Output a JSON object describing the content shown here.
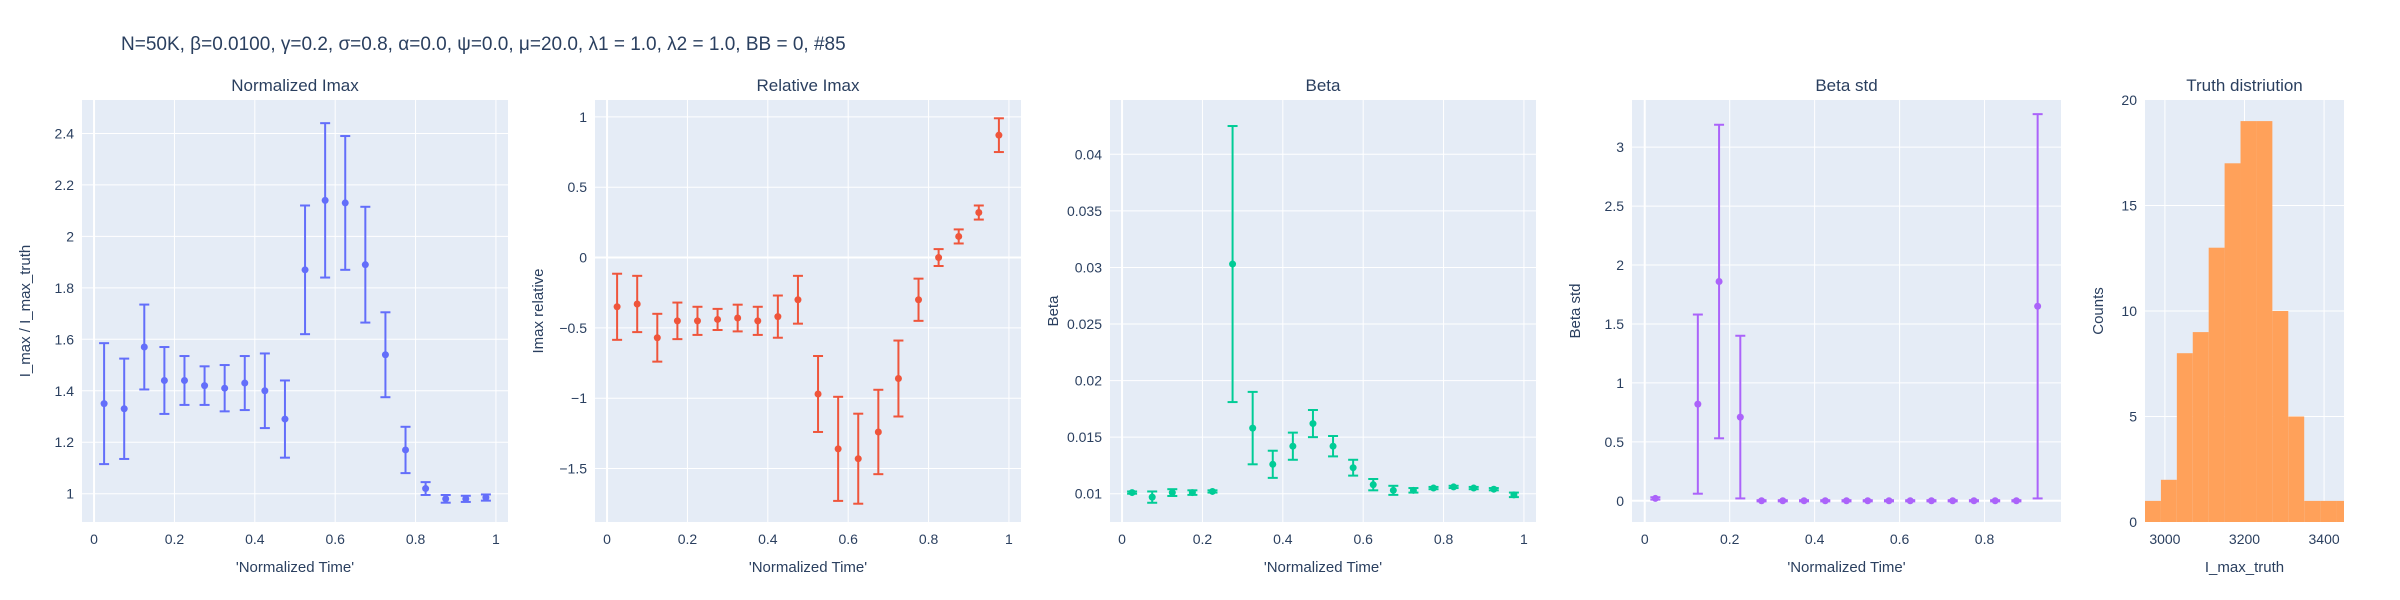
{
  "suptitle": "N=50K, β=0.0100, γ=0.2, σ=0.8,  α=0.0, ψ=0.0, μ=20.0, λ1 = 1.0, λ2 = 1.0, BB = 0, #85",
  "colors": {
    "plot_bg": "#E5ECF6",
    "grid": "#ffffff",
    "text": "#2a3f5f",
    "series_1": "#636EFA",
    "series_2": "#EF553B",
    "series_3": "#00CC96",
    "series_4": "#AB63FA",
    "series_5": "#FFA15A"
  },
  "chart_data": [
    {
      "type": "scatter",
      "title": "Normalized Imax",
      "xlabel": "'Normalized Time'",
      "ylabel": "I_max / I_max_truth",
      "xlim": [
        -0.03,
        1.03
      ],
      "ylim": [
        0.89,
        2.53
      ],
      "xticks": [
        0,
        0.2,
        0.4,
        0.6,
        0.8,
        1
      ],
      "xticklabels": [
        "0",
        "0.2",
        "0.4",
        "0.6",
        "0.8",
        "1"
      ],
      "yticks": [
        1,
        1.2,
        1.4,
        1.6,
        1.8,
        2,
        2.2,
        2.4
      ],
      "yticklabels": [
        "1",
        "1.2",
        "1.4",
        "1.6",
        "1.8",
        "2",
        "2.2",
        "2.4"
      ],
      "grid": true,
      "color": "#636EFA",
      "x": [
        0.025,
        0.075,
        0.125,
        0.175,
        0.225,
        0.275,
        0.325,
        0.375,
        0.425,
        0.475,
        0.525,
        0.575,
        0.625,
        0.675,
        0.725,
        0.775,
        0.825,
        0.875,
        0.925,
        0.975
      ],
      "y": [
        1.35,
        1.33,
        1.57,
        1.44,
        1.44,
        1.42,
        1.41,
        1.43,
        1.4,
        1.29,
        1.87,
        2.14,
        2.13,
        1.89,
        1.54,
        1.17,
        1.02,
        0.98,
        0.98,
        0.985
      ],
      "err": [
        0.235,
        0.195,
        0.165,
        0.13,
        0.095,
        0.075,
        0.09,
        0.105,
        0.145,
        0.15,
        0.25,
        0.3,
        0.26,
        0.225,
        0.165,
        0.09,
        0.025,
        0.015,
        0.012,
        0.012
      ]
    },
    {
      "type": "scatter",
      "title": "Relative Imax",
      "xlabel": "'Normalized Time'",
      "ylabel": "Imax relative",
      "xlim": [
        -0.03,
        1.03
      ],
      "ylim": [
        -1.88,
        1.12
      ],
      "xticks": [
        0,
        0.2,
        0.4,
        0.6,
        0.8,
        1
      ],
      "xticklabels": [
        "0",
        "0.2",
        "0.4",
        "0.6",
        "0.8",
        "1"
      ],
      "yticks": [
        -1.5,
        -1,
        -0.5,
        0,
        0.5,
        1
      ],
      "yticklabels": [
        "−1.5",
        "−1",
        "−0.5",
        "0",
        "0.5",
        "1"
      ],
      "grid": true,
      "color": "#EF553B",
      "x": [
        0.025,
        0.075,
        0.125,
        0.175,
        0.225,
        0.275,
        0.325,
        0.375,
        0.425,
        0.475,
        0.525,
        0.575,
        0.625,
        0.675,
        0.725,
        0.775,
        0.825,
        0.875,
        0.925,
        0.975
      ],
      "y": [
        -0.35,
        -0.33,
        -0.57,
        -0.45,
        -0.45,
        -0.44,
        -0.43,
        -0.45,
        -0.42,
        -0.3,
        -0.97,
        -1.36,
        -1.43,
        -1.24,
        -0.86,
        -0.3,
        0.0,
        0.15,
        0.32,
        0.87
      ],
      "err": [
        0.235,
        0.2,
        0.17,
        0.13,
        0.1,
        0.075,
        0.095,
        0.1,
        0.15,
        0.17,
        0.27,
        0.37,
        0.32,
        0.3,
        0.27,
        0.15,
        0.06,
        0.05,
        0.05,
        0.12
      ]
    },
    {
      "type": "scatter",
      "title": "Beta",
      "xlabel": "'Normalized Time'",
      "ylabel": "Beta",
      "xlim": [
        -0.03,
        1.03
      ],
      "ylim": [
        0.0075,
        0.0448
      ],
      "xticks": [
        0,
        0.2,
        0.4,
        0.6,
        0.8,
        1
      ],
      "xticklabels": [
        "0",
        "0.2",
        "0.4",
        "0.6",
        "0.8",
        "1"
      ],
      "yticks": [
        0.01,
        0.015,
        0.02,
        0.025,
        0.03,
        0.035,
        0.04
      ],
      "yticklabels": [
        "0.01",
        "0.015",
        "0.02",
        "0.025",
        "0.03",
        "0.035",
        "0.04"
      ],
      "grid": true,
      "color": "#00CC96",
      "x": [
        0.025,
        0.075,
        0.125,
        0.175,
        0.225,
        0.275,
        0.325,
        0.375,
        0.425,
        0.475,
        0.525,
        0.575,
        0.625,
        0.675,
        0.725,
        0.775,
        0.825,
        0.875,
        0.925,
        0.975
      ],
      "y": [
        0.0101,
        0.0097,
        0.0101,
        0.0101,
        0.0102,
        0.0303,
        0.0158,
        0.0126,
        0.0142,
        0.0162,
        0.0142,
        0.0123,
        0.0108,
        0.0103,
        0.0103,
        0.0105,
        0.0106,
        0.0105,
        0.0104,
        0.0099
      ],
      "err": [
        0.0001,
        0.0005,
        0.0003,
        0.0002,
        0.0001,
        0.0122,
        0.0032,
        0.0012,
        0.0012,
        0.0012,
        0.0009,
        0.0007,
        0.0005,
        0.0004,
        0.0002,
        0.0001,
        0.0001,
        0.0001,
        0.0001,
        0.0002
      ]
    },
    {
      "type": "scatter",
      "title": "Beta std",
      "xlabel": "'Normalized Time'",
      "ylabel": "Beta std",
      "xlim": [
        -0.03,
        0.98
      ],
      "ylim": [
        -0.18,
        3.4
      ],
      "xticks": [
        0,
        0.2,
        0.4,
        0.6,
        0.8
      ],
      "xticklabels": [
        "0",
        "0.2",
        "0.4",
        "0.6",
        "0.8"
      ],
      "yticks": [
        0,
        0.5,
        1,
        1.5,
        2,
        2.5,
        3
      ],
      "yticklabels": [
        "0",
        "0.5",
        "1",
        "1.5",
        "2",
        "2.5",
        "3"
      ],
      "grid": true,
      "color": "#AB63FA",
      "x": [
        0.025,
        0.125,
        0.175,
        0.225,
        0.275,
        0.325,
        0.375,
        0.425,
        0.475,
        0.525,
        0.575,
        0.625,
        0.675,
        0.725,
        0.775,
        0.825,
        0.875,
        0.925
      ],
      "y": [
        0.02,
        0.82,
        1.86,
        0.71,
        0.0,
        0.0,
        0.0,
        0.0,
        0.0,
        0.0,
        0.0,
        0.0,
        0.0,
        0.0,
        0.0,
        0.0,
        0.0,
        1.65
      ],
      "err": [
        0.01,
        0.76,
        1.33,
        0.69,
        0.005,
        0.005,
        0.005,
        0.005,
        0.005,
        0.005,
        0.005,
        0.005,
        0.005,
        0.005,
        0.005,
        0.005,
        0.005,
        1.63
      ]
    },
    {
      "type": "bar",
      "title": "Truth distriution",
      "xlabel": "I_max_truth",
      "ylabel": "Counts",
      "xlim": [
        2950,
        3450
      ],
      "ylim": [
        0,
        20
      ],
      "xticks": [
        3000,
        3200,
        3400
      ],
      "xticklabels": [
        "3000",
        "3200",
        "3400"
      ],
      "yticks": [
        0,
        5,
        10,
        15,
        20
      ],
      "yticklabels": [
        "0",
        "5",
        "10",
        "15",
        "20"
      ],
      "grid": true,
      "color": "#FFA15A",
      "bin_edges": [
        2950,
        2990,
        3030,
        3070,
        3110,
        3150,
        3190,
        3230,
        3270,
        3310,
        3350,
        3390,
        3430,
        3450
      ],
      "counts": [
        1,
        2,
        8,
        9,
        13,
        17,
        19,
        19,
        10,
        5,
        1,
        1,
        1
      ]
    }
  ]
}
